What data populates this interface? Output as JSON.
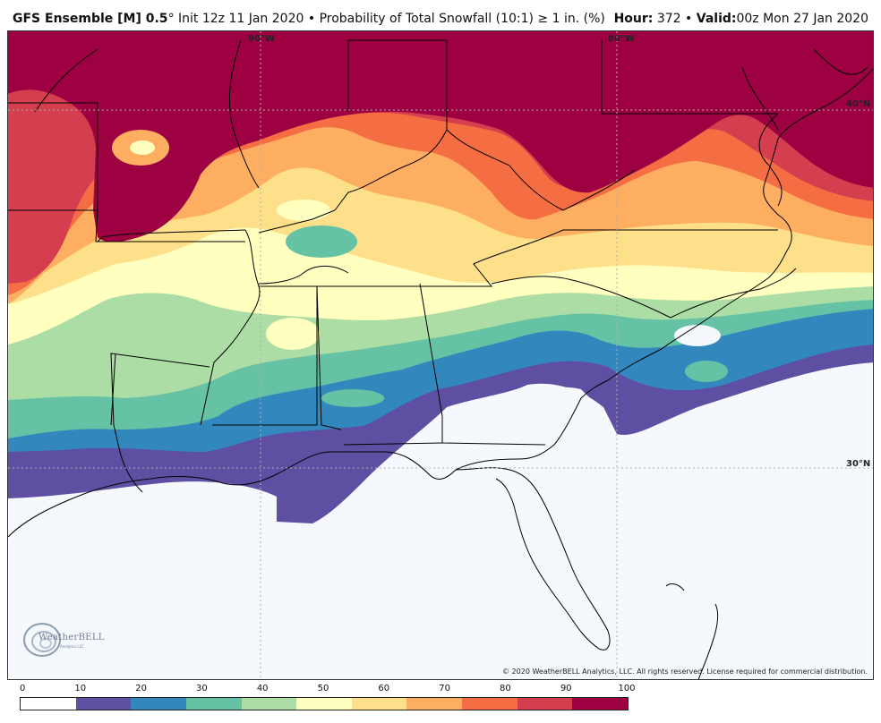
{
  "header": {
    "model": "GFS Ensemble [M] 0.5",
    "degree_mark": "°",
    "init": "Init 12z 11 Jan 2020",
    "bullet": "•",
    "product": "Probability of Total Snowfall (10:1)  ≥ 1 in. (%)",
    "hour_label": "Hour:",
    "hour_value": "372",
    "valid_label": "Valid:",
    "valid_value": "00z Mon 27 Jan 2020"
  },
  "grid_labels": {
    "lon_90w_a": "90°W",
    "lon_80w": "80°W",
    "lat_40n": "40°N",
    "lat_30n": "30°N"
  },
  "copyright": "© 2020 WeatherBELL Analytics, LLC. All rights reserved. License required for commercial distribution.",
  "logo": {
    "name": "WeatherBELL",
    "sub": "Analytics LLC"
  },
  "legend": {
    "labels": [
      "0",
      "10",
      "20",
      "30",
      "40",
      "50",
      "60",
      "70",
      "80",
      "90",
      "100"
    ],
    "colors": [
      "#ffffff",
      "#5e4fa2",
      "#3288bd",
      "#66c2a5",
      "#abdda4",
      "#ffffbf",
      "#fee08b",
      "#fdae61",
      "#f46d43",
      "#d53e4f",
      "#9e0142"
    ]
  },
  "colors": {
    "c10": "#5e4fa2",
    "c20": "#3288bd",
    "c30": "#66c2a5",
    "c40": "#abdda4",
    "c50": "#ffffbf",
    "c60": "#fee08b",
    "c70": "#fdae61",
    "c80": "#f46d43",
    "c90": "#d53e4f",
    "c100": "#9e0142",
    "ocean": "#f5f8fd"
  }
}
